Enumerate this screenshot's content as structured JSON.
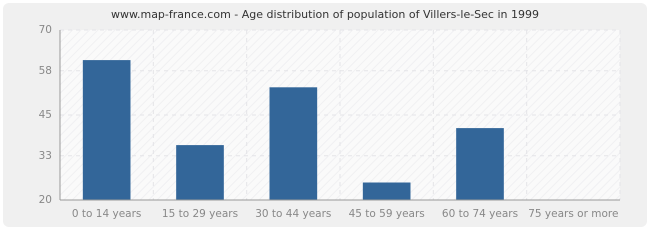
{
  "chart_data": {
    "type": "bar",
    "title": "www.map-france.com - Age distribution of population of Villers-le-Sec in 1999",
    "categories": [
      "0 to 14 years",
      "15 to 29 years",
      "30 to 44 years",
      "45 to 59 years",
      "60 to 74 years",
      "75 years or more"
    ],
    "values": [
      61,
      36,
      53,
      25,
      41,
      20
    ],
    "color": "#336699",
    "ylim": [
      20,
      70
    ],
    "yticks": [
      20,
      33,
      45,
      58,
      70
    ],
    "grid": true
  }
}
